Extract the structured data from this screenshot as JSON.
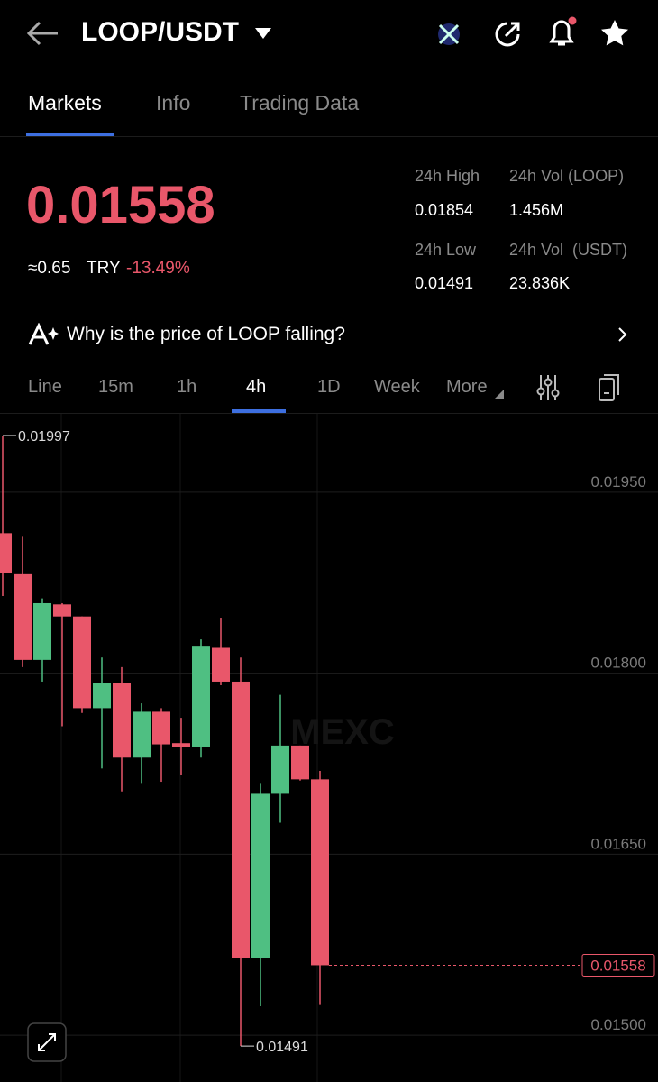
{
  "header": {
    "pair": "LOOP/USDT"
  },
  "tabs": [
    "Markets",
    "Info",
    "Trading Data"
  ],
  "ticker": {
    "price": "0.01558",
    "approx": "≈0.65",
    "currency": "TRY",
    "change": "-13.49%"
  },
  "stats": [
    {
      "label": "24h High",
      "value": "0.01854"
    },
    {
      "label": "24h Vol (LOOP)",
      "value": "1.456M"
    },
    {
      "label": "24h Low",
      "value": "0.01491"
    },
    {
      "label": "24h Vol  (USDT)",
      "value": "23.836K"
    }
  ],
  "banner": "Why is the price of LOOP falling?",
  "intervals": [
    "Line",
    "15m",
    "1h",
    "4h",
    "1D",
    "Week",
    "More"
  ],
  "chart_data": {
    "type": "candlestick",
    "watermark": "MEXC",
    "open": [
      0.01916,
      0.01882,
      0.01811,
      0.01857,
      0.01847,
      0.01771,
      0.01792,
      0.0173,
      0.01768,
      0.01742,
      0.01739,
      0.01821,
      0.01793,
      0.01564,
      0.017,
      0.0174,
      0.01712
    ],
    "high": [
      0.01997,
      0.01913,
      0.01862,
      0.01858,
      0.01847,
      0.01813,
      0.01805,
      0.01775,
      0.01771,
      0.01763,
      0.01828,
      0.01846,
      0.01813,
      0.01709,
      0.01782,
      0.0174,
      0.01719
    ],
    "low": [
      0.01864,
      0.01805,
      0.01793,
      0.01756,
      0.01767,
      0.01721,
      0.01702,
      0.01709,
      0.0171,
      0.01716,
      0.0173,
      0.0179,
      0.01491,
      0.01524,
      0.01676,
      0.01711,
      0.01525
    ],
    "close": [
      0.01883,
      0.01811,
      0.01858,
      0.01847,
      0.01771,
      0.01792,
      0.0173,
      0.01768,
      0.01741,
      0.01739,
      0.01822,
      0.01793,
      0.01564,
      0.017,
      0.0174,
      0.01712,
      0.01558
    ],
    "up_color": "#4fbf82",
    "down_color": "#e9576a",
    "ylim": [
      0.014612,
      0.020149
    ],
    "yticks": [
      {
        "value": 0.0195,
        "label": "0.01950"
      },
      {
        "value": 0.018,
        "label": "0.01800"
      },
      {
        "value": 0.0165,
        "label": "0.01650"
      },
      {
        "value": 0.015,
        "label": "0.01500"
      }
    ],
    "high_marker": 0.01997,
    "low_marker": 0.01491,
    "last_price": 0.01558,
    "grid": true
  }
}
